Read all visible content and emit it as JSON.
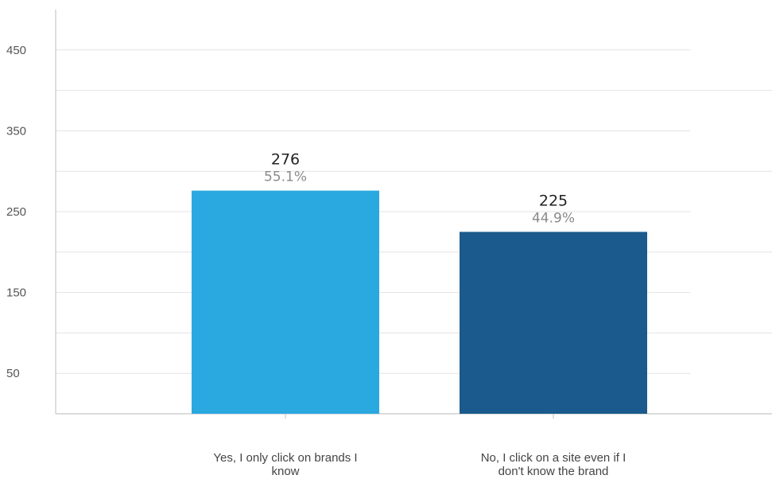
{
  "chart_data": {
    "type": "bar",
    "title": "",
    "xlabel": "",
    "ylabel": "",
    "ylim": [
      0,
      500
    ],
    "yticks": [
      50,
      150,
      250,
      350,
      450
    ],
    "grid": true,
    "categories": [
      [
        "Yes, I only click on brands I",
        "know"
      ],
      [
        "No, I click on a site even if I",
        "don't know the brand"
      ]
    ],
    "values": [
      276,
      225
    ],
    "percent_labels": [
      "55.1%",
      "44.9%"
    ],
    "colors": [
      "#2aa8e0",
      "#1b5a8c"
    ]
  }
}
